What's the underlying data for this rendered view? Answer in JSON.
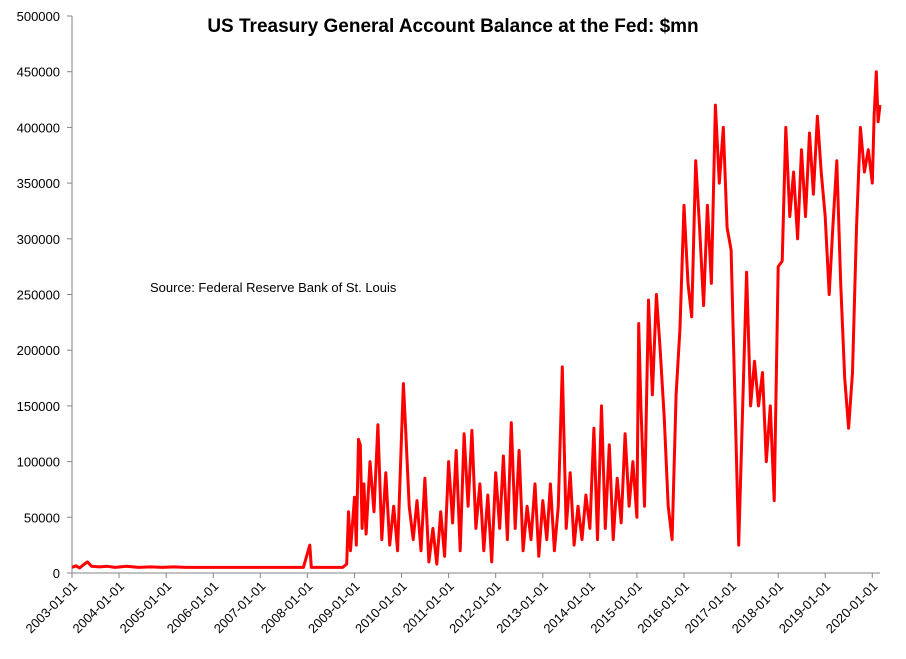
{
  "chart_data": {
    "type": "line",
    "title": "US Treasury General Account Balance at the Fed: $mn",
    "annotation": "Source: Federal Reserve Bank of St. Louis",
    "xlabel": "",
    "ylabel": "",
    "ylim": [
      0,
      500000
    ],
    "yticks": [
      0,
      50000,
      100000,
      150000,
      200000,
      250000,
      300000,
      350000,
      400000,
      450000,
      500000
    ],
    "xticks": [
      "2003-01-01",
      "2004-01-01",
      "2005-01-01",
      "2006-01-01",
      "2007-01-01",
      "2008-01-01",
      "2009-01-01",
      "2010-01-01",
      "2011-01-01",
      "2012-01-01",
      "2013-01-01",
      "2014-01-01",
      "2015-01-01",
      "2016-01-01",
      "2017-01-01",
      "2018-01-01",
      "2019-01-01",
      "2020-01-01"
    ],
    "xlim": [
      "2003-01-01",
      "2020-03-01"
    ],
    "grid": false,
    "legend": "none",
    "series": [
      {
        "color": "#ff0000",
        "points": [
          [
            "2003-01-01",
            5000
          ],
          [
            "2003-02-01",
            6500
          ],
          [
            "2003-03-01",
            4500
          ],
          [
            "2003-04-01",
            7500
          ],
          [
            "2003-05-01",
            10000
          ],
          [
            "2003-06-01",
            6000
          ],
          [
            "2003-08-01",
            5500
          ],
          [
            "2003-10-01",
            6000
          ],
          [
            "2003-12-01",
            5000
          ],
          [
            "2004-03-01",
            6000
          ],
          [
            "2004-06-01",
            5000
          ],
          [
            "2004-09-01",
            5500
          ],
          [
            "2004-12-01",
            5000
          ],
          [
            "2005-03-01",
            5500
          ],
          [
            "2005-06-01",
            5000
          ],
          [
            "2005-09-01",
            5000
          ],
          [
            "2005-12-01",
            5000
          ],
          [
            "2006-03-01",
            5000
          ],
          [
            "2006-06-01",
            5000
          ],
          [
            "2006-09-01",
            5000
          ],
          [
            "2006-12-01",
            5000
          ],
          [
            "2007-03-01",
            5000
          ],
          [
            "2007-06-01",
            5000
          ],
          [
            "2007-09-01",
            5000
          ],
          [
            "2007-12-01",
            5000
          ],
          [
            "2008-01-20",
            25000
          ],
          [
            "2008-02-01",
            5000
          ],
          [
            "2008-05-01",
            5000
          ],
          [
            "2008-08-01",
            5000
          ],
          [
            "2008-10-01",
            5000
          ],
          [
            "2008-11-01",
            8000
          ],
          [
            "2008-11-15",
            55000
          ],
          [
            "2008-12-01",
            20000
          ],
          [
            "2009-01-01",
            68000
          ],
          [
            "2009-01-15",
            25000
          ],
          [
            "2009-02-01",
            120000
          ],
          [
            "2009-02-15",
            115000
          ],
          [
            "2009-03-01",
            40000
          ],
          [
            "2009-03-15",
            80000
          ],
          [
            "2009-04-01",
            35000
          ],
          [
            "2009-05-01",
            100000
          ],
          [
            "2009-06-01",
            55000
          ],
          [
            "2009-07-01",
            133000
          ],
          [
            "2009-08-01",
            30000
          ],
          [
            "2009-09-01",
            90000
          ],
          [
            "2009-10-01",
            25000
          ],
          [
            "2009-11-01",
            60000
          ],
          [
            "2009-12-01",
            20000
          ],
          [
            "2010-01-01",
            125000
          ],
          [
            "2010-01-15",
            170000
          ],
          [
            "2010-02-01",
            130000
          ],
          [
            "2010-03-01",
            60000
          ],
          [
            "2010-04-01",
            30000
          ],
          [
            "2010-05-01",
            65000
          ],
          [
            "2010-06-01",
            20000
          ],
          [
            "2010-07-01",
            85000
          ],
          [
            "2010-08-01",
            10000
          ],
          [
            "2010-09-01",
            40000
          ],
          [
            "2010-10-01",
            8000
          ],
          [
            "2010-11-01",
            55000
          ],
          [
            "2010-12-01",
            15000
          ],
          [
            "2011-01-01",
            100000
          ],
          [
            "2011-02-01",
            45000
          ],
          [
            "2011-03-01",
            110000
          ],
          [
            "2011-04-01",
            20000
          ],
          [
            "2011-05-01",
            125000
          ],
          [
            "2011-06-01",
            60000
          ],
          [
            "2011-07-01",
            128000
          ],
          [
            "2011-08-01",
            40000
          ],
          [
            "2011-09-01",
            80000
          ],
          [
            "2011-10-01",
            20000
          ],
          [
            "2011-11-01",
            70000
          ],
          [
            "2011-12-01",
            10000
          ],
          [
            "2012-01-01",
            90000
          ],
          [
            "2012-02-01",
            40000
          ],
          [
            "2012-03-01",
            105000
          ],
          [
            "2012-04-01",
            30000
          ],
          [
            "2012-05-01",
            135000
          ],
          [
            "2012-06-01",
            40000
          ],
          [
            "2012-07-01",
            110000
          ],
          [
            "2012-08-01",
            20000
          ],
          [
            "2012-09-01",
            60000
          ],
          [
            "2012-10-01",
            30000
          ],
          [
            "2012-11-01",
            80000
          ],
          [
            "2012-12-01",
            15000
          ],
          [
            "2013-01-01",
            65000
          ],
          [
            "2013-02-01",
            30000
          ],
          [
            "2013-03-01",
            80000
          ],
          [
            "2013-04-01",
            20000
          ],
          [
            "2013-05-01",
            60000
          ],
          [
            "2013-06-01",
            185000
          ],
          [
            "2013-07-01",
            40000
          ],
          [
            "2013-08-01",
            90000
          ],
          [
            "2013-09-01",
            25000
          ],
          [
            "2013-10-01",
            60000
          ],
          [
            "2013-11-01",
            30000
          ],
          [
            "2013-12-01",
            70000
          ],
          [
            "2014-01-01",
            40000
          ],
          [
            "2014-02-01",
            130000
          ],
          [
            "2014-03-01",
            30000
          ],
          [
            "2014-04-01",
            150000
          ],
          [
            "2014-05-01",
            40000
          ],
          [
            "2014-06-01",
            115000
          ],
          [
            "2014-07-01",
            30000
          ],
          [
            "2014-08-01",
            85000
          ],
          [
            "2014-09-01",
            45000
          ],
          [
            "2014-10-01",
            125000
          ],
          [
            "2014-11-01",
            60000
          ],
          [
            "2014-12-01",
            100000
          ],
          [
            "2015-01-01",
            50000
          ],
          [
            "2015-01-15",
            224000
          ],
          [
            "2015-02-01",
            150000
          ],
          [
            "2015-03-01",
            60000
          ],
          [
            "2015-04-01",
            245000
          ],
          [
            "2015-05-01",
            160000
          ],
          [
            "2015-06-01",
            250000
          ],
          [
            "2015-07-01",
            200000
          ],
          [
            "2015-08-01",
            140000
          ],
          [
            "2015-09-01",
            60000
          ],
          [
            "2015-10-01",
            30000
          ],
          [
            "2015-11-01",
            160000
          ],
          [
            "2015-12-01",
            220000
          ],
          [
            "2016-01-01",
            330000
          ],
          [
            "2016-02-01",
            260000
          ],
          [
            "2016-03-01",
            230000
          ],
          [
            "2016-04-01",
            370000
          ],
          [
            "2016-05-01",
            310000
          ],
          [
            "2016-06-01",
            240000
          ],
          [
            "2016-07-01",
            330000
          ],
          [
            "2016-08-01",
            260000
          ],
          [
            "2016-09-01",
            420000
          ],
          [
            "2016-10-01",
            350000
          ],
          [
            "2016-11-01",
            400000
          ],
          [
            "2016-12-01",
            310000
          ],
          [
            "2017-01-01",
            290000
          ],
          [
            "2017-02-01",
            150000
          ],
          [
            "2017-03-01",
            25000
          ],
          [
            "2017-04-01",
            150000
          ],
          [
            "2017-05-01",
            270000
          ],
          [
            "2017-06-01",
            150000
          ],
          [
            "2017-07-01",
            190000
          ],
          [
            "2017-08-01",
            150000
          ],
          [
            "2017-09-01",
            180000
          ],
          [
            "2017-10-01",
            100000
          ],
          [
            "2017-11-01",
            150000
          ],
          [
            "2017-12-01",
            65000
          ],
          [
            "2018-01-01",
            275000
          ],
          [
            "2018-02-01",
            280000
          ],
          [
            "2018-03-01",
            400000
          ],
          [
            "2018-04-01",
            320000
          ],
          [
            "2018-05-01",
            360000
          ],
          [
            "2018-06-01",
            300000
          ],
          [
            "2018-07-01",
            380000
          ],
          [
            "2018-08-01",
            320000
          ],
          [
            "2018-09-01",
            395000
          ],
          [
            "2018-10-01",
            340000
          ],
          [
            "2018-11-01",
            410000
          ],
          [
            "2018-12-01",
            360000
          ],
          [
            "2019-01-01",
            320000
          ],
          [
            "2019-02-01",
            250000
          ],
          [
            "2019-03-01",
            310000
          ],
          [
            "2019-04-01",
            370000
          ],
          [
            "2019-05-01",
            260000
          ],
          [
            "2019-06-01",
            175000
          ],
          [
            "2019-07-01",
            130000
          ],
          [
            "2019-08-01",
            180000
          ],
          [
            "2019-09-01",
            310000
          ],
          [
            "2019-10-01",
            400000
          ],
          [
            "2019-11-01",
            360000
          ],
          [
            "2019-12-01",
            380000
          ],
          [
            "2020-01-01",
            350000
          ],
          [
            "2020-01-15",
            410000
          ],
          [
            "2020-02-01",
            450000
          ],
          [
            "2020-02-15",
            405000
          ],
          [
            "2020-03-01",
            420000
          ]
        ]
      }
    ]
  }
}
